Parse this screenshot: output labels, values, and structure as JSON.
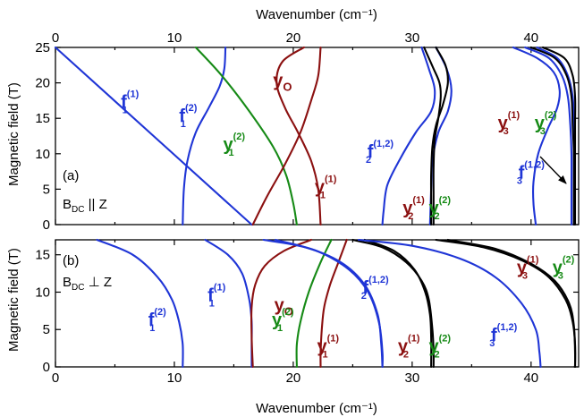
{
  "colors": {
    "blue": "#1f35d6",
    "green": "#168a16",
    "darkred": "#8b1010",
    "black": "#000000"
  },
  "chart_data": [
    {
      "type": "line",
      "panel_tag": "(a)",
      "field_label": {
        "main": "B",
        "sub": "DC",
        "relation": " || Z"
      },
      "top_xlabel": "Wavenumber (cm⁻¹)",
      "ylabel": "Magnetic field (T)",
      "xlim": [
        0,
        44
      ],
      "ylim": [
        0,
        25
      ],
      "top_xticks": [
        0,
        10,
        20,
        30,
        40
      ],
      "yticks": [
        0,
        5,
        10,
        15,
        20,
        25
      ],
      "series": [
        {
          "color": "blue",
          "points": [
            [
              0,
              25
            ],
            [
              16.5,
              0
            ]
          ]
        },
        {
          "color": "blue",
          "points": [
            [
              14.3,
              25
            ],
            [
              14.2,
              22
            ],
            [
              13.8,
              19.5
            ],
            [
              12.9,
              16.5
            ],
            [
              11.8,
              13
            ],
            [
              11.1,
              9
            ],
            [
              10.8,
              5
            ],
            [
              10.7,
              0
            ]
          ]
        },
        {
          "color": "green",
          "points": [
            [
              11.8,
              25
            ],
            [
              14,
              21
            ],
            [
              16.3,
              16
            ],
            [
              18.3,
              11
            ],
            [
              19.4,
              7
            ],
            [
              20,
              3
            ],
            [
              20.3,
              0
            ]
          ]
        },
        {
          "color": "darkred",
          "points": [
            [
              20.9,
              25
            ],
            [
              19.1,
              23
            ],
            [
              18.6,
              20
            ],
            [
              19.3,
              16.5
            ],
            [
              20.4,
              13
            ],
            [
              21.5,
              9
            ],
            [
              22.1,
              5
            ],
            [
              22.3,
              0
            ]
          ]
        },
        {
          "color": "darkred",
          "points": [
            [
              22.3,
              25
            ],
            [
              22.1,
              21
            ],
            [
              21.5,
              17.5
            ],
            [
              20.6,
              13
            ],
            [
              19.3,
              8.5
            ],
            [
              17.8,
              4
            ],
            [
              16.6,
              0
            ]
          ]
        },
        {
          "color": "blue",
          "points": [
            [
              30.8,
              25
            ],
            [
              31.4,
              22
            ],
            [
              31.9,
              19
            ],
            [
              31.6,
              16
            ],
            [
              30.3,
              13
            ],
            [
              28.9,
              9
            ],
            [
              27.9,
              5.5
            ],
            [
              27.6,
              2
            ],
            [
              27.5,
              0
            ]
          ]
        },
        {
          "color": "blue",
          "points": [
            [
              32,
              25
            ],
            [
              32.9,
              22
            ],
            [
              33.3,
              19
            ],
            [
              33,
              16
            ],
            [
              32.2,
              13
            ],
            [
              31.7,
              9
            ],
            [
              31.6,
              5
            ],
            [
              31.5,
              0
            ]
          ]
        },
        {
          "color": "black",
          "points": [
            [
              31,
              25
            ],
            [
              31.8,
              22
            ],
            [
              32.3,
              20
            ],
            [
              32.4,
              18
            ],
            [
              32.2,
              15
            ],
            [
              31.9,
              12
            ],
            [
              31.8,
              8
            ],
            [
              31.8,
              4
            ],
            [
              31.8,
              0
            ]
          ]
        },
        {
          "color": "black",
          "points": [
            [
              32,
              25
            ],
            [
              32.8,
              22.5
            ],
            [
              33,
              20
            ],
            [
              32.6,
              17
            ],
            [
              32,
              14
            ],
            [
              31.7,
              11
            ],
            [
              31.6,
              7
            ],
            [
              31.6,
              3
            ],
            [
              31.6,
              0
            ]
          ]
        },
        {
          "color": "blue",
          "points": [
            [
              38.5,
              25
            ],
            [
              40.5,
              23.5
            ],
            [
              41.9,
              21.5
            ],
            [
              42.4,
              19
            ],
            [
              42.2,
              16.5
            ],
            [
              41.4,
              13.5
            ],
            [
              40.6,
              10
            ],
            [
              40.2,
              6
            ],
            [
              40.2,
              3
            ],
            [
              40.4,
              0
            ]
          ]
        },
        {
          "color": "blue",
          "points": [
            [
              39.5,
              25
            ],
            [
              41.5,
              23.5
            ],
            [
              42.6,
              21
            ],
            [
              43.1,
              18
            ],
            [
              43.3,
              14
            ],
            [
              43.4,
              10
            ],
            [
              43.4,
              5
            ],
            [
              43.4,
              0
            ]
          ]
        },
        {
          "color": "blue",
          "points": [
            [
              40.5,
              25
            ],
            [
              42.2,
              23.5
            ],
            [
              43.1,
              21
            ],
            [
              43.5,
              18
            ],
            [
              43.6,
              14
            ],
            [
              43.6,
              10
            ],
            [
              43.6,
              5
            ],
            [
              43.6,
              0
            ]
          ]
        },
        {
          "color": "black",
          "points": [
            [
              40,
              25
            ],
            [
              42,
              23.5
            ],
            [
              43,
              21
            ],
            [
              43.4,
              18
            ],
            [
              43.5,
              14
            ],
            [
              43.6,
              10
            ],
            [
              43.6,
              5
            ],
            [
              43.6,
              0
            ]
          ]
        },
        {
          "color": "black",
          "points": [
            [
              41,
              25
            ],
            [
              42.8,
              23.5
            ],
            [
              43.5,
              21
            ],
            [
              43.7,
              18
            ],
            [
              43.7,
              14
            ],
            [
              43.7,
              10
            ],
            [
              43.7,
              5
            ],
            [
              43.7,
              0
            ]
          ]
        }
      ],
      "labels": [
        {
          "text": "f",
          "sub": "1",
          "sup": "(1)",
          "x": 5.5,
          "y": 16.5,
          "color": "blue"
        },
        {
          "text": "f",
          "sub": "1",
          "sup": "(2)",
          "x": 10.4,
          "y": 14.5,
          "color": "blue"
        },
        {
          "text": "y",
          "sub": "1",
          "sup": "(2)",
          "x": 14.1,
          "y": 10.5,
          "color": "green"
        },
        {
          "text": "y",
          "sub": "O",
          "sup": "",
          "x": 18.3,
          "y": 19.5,
          "color": "darkred"
        },
        {
          "text": "y",
          "sub": "1",
          "sup": "(1)",
          "x": 21.8,
          "y": 4.5,
          "color": "darkred"
        },
        {
          "text": "f",
          "sub": "2",
          "sup": "(1,2)",
          "x": 26.1,
          "y": 9.5,
          "color": "blue"
        },
        {
          "text": "y",
          "sub": "2",
          "sup": "(1)",
          "x": 29.2,
          "y": 1.5,
          "color": "darkred"
        },
        {
          "text": "y",
          "sub": "2",
          "sup": "(2)",
          "x": 31.4,
          "y": 1.5,
          "color": "green"
        },
        {
          "text": "y",
          "sub": "3",
          "sup": "(1)",
          "x": 37.2,
          "y": 13.5,
          "color": "darkred"
        },
        {
          "text": "y",
          "sub": "3",
          "sup": "(2)",
          "x": 40.3,
          "y": 13.5,
          "color": "green"
        },
        {
          "text": "f",
          "sub": "3",
          "sup": "(1,2)",
          "x": 38.8,
          "y": 6.5,
          "color": "blue"
        }
      ]
    },
    {
      "type": "line",
      "panel_tag": "(b)",
      "field_label": {
        "main": "B",
        "sub": "DC",
        "relation": " ⊥ Z"
      },
      "xlabel": "Wavenumber (cm⁻¹)",
      "ylabel": "Magnetic field (T)",
      "xlim": [
        0,
        44
      ],
      "ylim": [
        0,
        17
      ],
      "xticks": [
        0,
        10,
        20,
        30,
        40
      ],
      "yticks": [
        0,
        5,
        10,
        15
      ],
      "series": [
        {
          "color": "blue",
          "points": [
            [
              3.5,
              17
            ],
            [
              6.5,
              15
            ],
            [
              8.6,
              12
            ],
            [
              9.8,
              9
            ],
            [
              10.4,
              6
            ],
            [
              10.7,
              3
            ],
            [
              10.7,
              0
            ]
          ]
        },
        {
          "color": "blue",
          "points": [
            [
              12.6,
              17
            ],
            [
              14.5,
              15
            ],
            [
              15.7,
              12.5
            ],
            [
              16.3,
              9
            ],
            [
              16.5,
              6
            ],
            [
              16.5,
              3
            ],
            [
              16.5,
              0
            ]
          ]
        },
        {
          "color": "darkred",
          "points": [
            [
              21.5,
              17
            ],
            [
              19.2,
              15.5
            ],
            [
              17.6,
              13.5
            ],
            [
              16.8,
              11
            ],
            [
              16.5,
              8
            ],
            [
              16.5,
              4
            ],
            [
              16.6,
              0
            ]
          ]
        },
        {
          "color": "green",
          "points": [
            [
              23.2,
              17
            ],
            [
              22.3,
              14
            ],
            [
              21.3,
              10
            ],
            [
              20.6,
              6
            ],
            [
              20.3,
              3
            ],
            [
              20.3,
              0
            ]
          ]
        },
        {
          "color": "darkred",
          "points": [
            [
              24.5,
              17
            ],
            [
              23.8,
              14
            ],
            [
              23.1,
              11
            ],
            [
              22.6,
              8
            ],
            [
              22.4,
              5
            ],
            [
              22.3,
              2
            ],
            [
              22.3,
              0
            ]
          ]
        },
        {
          "color": "blue",
          "points": [
            [
              17.5,
              17
            ],
            [
              21,
              16
            ],
            [
              24,
              14
            ],
            [
              26,
              11
            ],
            [
              27.1,
              7
            ],
            [
              27.4,
              3
            ],
            [
              27.5,
              0
            ]
          ]
        },
        {
          "color": "blue",
          "points": [
            [
              18.5,
              17
            ],
            [
              22,
              15.5
            ],
            [
              24.7,
              13
            ],
            [
              26.3,
              10
            ],
            [
              27.2,
              6
            ],
            [
              27.5,
              2
            ],
            [
              27.5,
              0
            ]
          ]
        },
        {
          "color": "black",
          "points": [
            [
              25,
              17
            ],
            [
              27.5,
              16
            ],
            [
              29.5,
              14
            ],
            [
              30.8,
              11.5
            ],
            [
              31.4,
              9
            ],
            [
              31.7,
              5
            ],
            [
              31.8,
              2
            ],
            [
              31.8,
              0
            ]
          ]
        },
        {
          "color": "black",
          "points": [
            [
              26,
              17
            ],
            [
              28.5,
              15.5
            ],
            [
              30.2,
              13
            ],
            [
              31.1,
              10
            ],
            [
              31.5,
              7
            ],
            [
              31.6,
              4
            ],
            [
              31.6,
              0
            ]
          ]
        },
        {
          "color": "blue",
          "points": [
            [
              25.5,
              17
            ],
            [
              30,
              16.2
            ],
            [
              34,
              14.5
            ],
            [
              37,
              12
            ],
            [
              39.2,
              8.5
            ],
            [
              40.4,
              5
            ],
            [
              40.7,
              2
            ],
            [
              40.8,
              0
            ]
          ]
        },
        {
          "color": "black",
          "points": [
            [
              32,
              17
            ],
            [
              36,
              16
            ],
            [
              39.3,
              14.2
            ],
            [
              41.5,
              12
            ],
            [
              42.9,
              9
            ],
            [
              43.5,
              6
            ],
            [
              43.7,
              3
            ],
            [
              43.7,
              0
            ]
          ]
        },
        {
          "color": "black",
          "points": [
            [
              33,
              17
            ],
            [
              37,
              15.8
            ],
            [
              40,
              13.8
            ],
            [
              42,
              11.5
            ],
            [
              43.2,
              8.5
            ],
            [
              43.6,
              5.5
            ],
            [
              43.7,
              2
            ],
            [
              43.7,
              0
            ]
          ]
        }
      ],
      "labels": [
        {
          "text": "f",
          "sub": "1",
          "sup": "(2)",
          "x": 7.8,
          "y": 5.5,
          "color": "blue"
        },
        {
          "text": "f",
          "sub": "1",
          "sup": "(1)",
          "x": 12.8,
          "y": 8.8,
          "color": "blue"
        },
        {
          "text": "y",
          "sub": "O",
          "sup": "",
          "x": 18.4,
          "y": 7.5,
          "color": "darkred"
        },
        {
          "text": "y",
          "sub": "1",
          "sup": "(2)",
          "x": 18.2,
          "y": 5.5,
          "color": "green"
        },
        {
          "text": "y",
          "sub": "1",
          "sup": "(1)",
          "x": 22,
          "y": 2,
          "color": "darkred"
        },
        {
          "text": "f",
          "sub": "2",
          "sup": "(1,2)",
          "x": 25.7,
          "y": 9.8,
          "color": "blue"
        },
        {
          "text": "y",
          "sub": "2",
          "sup": "(1)",
          "x": 28.8,
          "y": 2,
          "color": "darkred"
        },
        {
          "text": "y",
          "sub": "2",
          "sup": "(2)",
          "x": 31.4,
          "y": 2,
          "color": "green"
        },
        {
          "text": "f",
          "sub": "3",
          "sup": "(1,2)",
          "x": 36.5,
          "y": 3.5,
          "color": "blue"
        },
        {
          "text": "y",
          "sub": "3",
          "sup": "(1)",
          "x": 38.8,
          "y": 12.5,
          "color": "darkred"
        },
        {
          "text": "y",
          "sub": "3",
          "sup": "(2)",
          "x": 41.8,
          "y": 12.5,
          "color": "green"
        }
      ]
    }
  ]
}
